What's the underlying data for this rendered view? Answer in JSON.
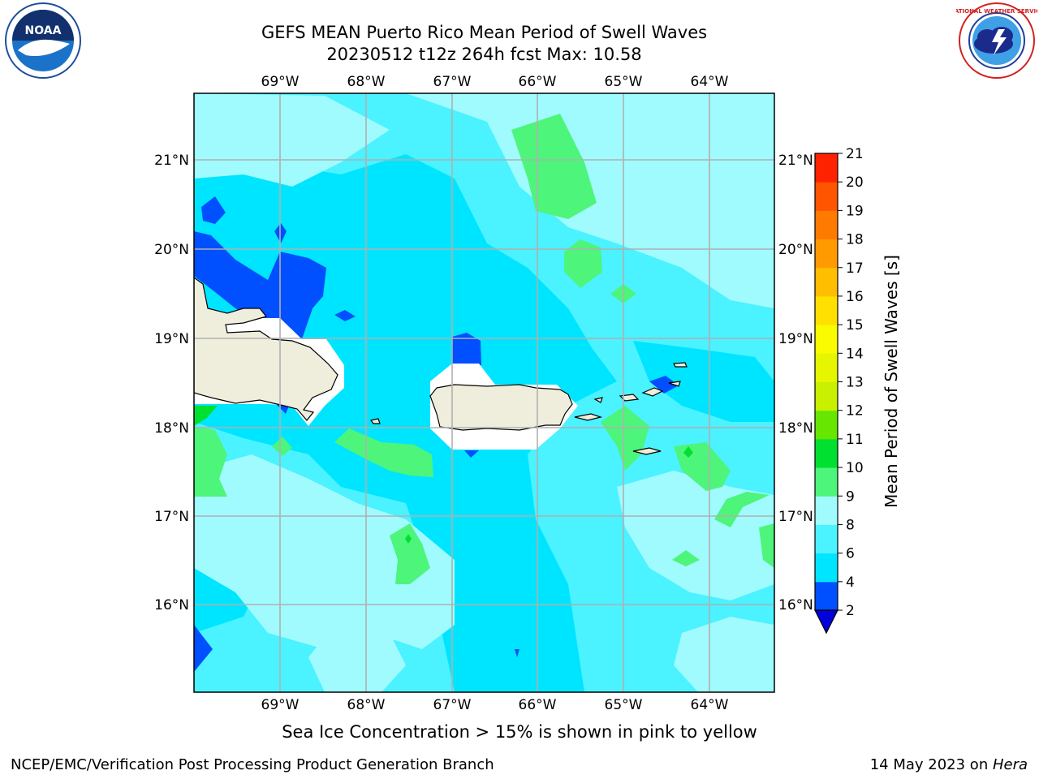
{
  "header": {
    "title_line1": "GEFS MEAN Puerto Rico Mean Period of Swell Waves",
    "title_line2": "20230512 t12z 264h fcst   Max: 10.58"
  },
  "logos": {
    "left": "noaa-logo",
    "right": "national-weather-service-logo",
    "left_text": "NOAA",
    "right_text": "NATIONAL WEATHER SERVICE"
  },
  "map": {
    "lon_labels": [
      "69°W",
      "68°W",
      "67°W",
      "66°W",
      "65°W",
      "64°W"
    ],
    "lat_labels": [
      "21°N",
      "20°N",
      "19°N",
      "18°N",
      "17°N",
      "16°N"
    ],
    "gridlines": true,
    "land_color": "#efeedc",
    "mask_color": "#ffffff"
  },
  "colorbar": {
    "label": "Mean Period of Swell Waves [s]",
    "ticks": [
      "2",
      "4",
      "6",
      "8",
      "9",
      "10",
      "11",
      "12",
      "13",
      "14",
      "15",
      "16",
      "17",
      "18",
      "19",
      "20",
      "21"
    ],
    "colors": [
      "#0050ff",
      "#00e5ff",
      "#4bf2ff",
      "#a0fbff",
      "#4df57a",
      "#00e030",
      "#66e600",
      "#c8f000",
      "#e6f500",
      "#fafa00",
      "#ffe000",
      "#ffbe00",
      "#ff9b00",
      "#ff7a00",
      "#ff5500",
      "#ff2200"
    ],
    "under_color": "#0000dd",
    "over_color": "#ff0000"
  },
  "caption": "Sea Ice Concentration > 15% is shown in pink to yellow",
  "footer": {
    "left": "NCEP/EMC/Verification Post Processing Product Generation Branch",
    "right_date": "14 May 2023 on ",
    "right_machine": "Hera"
  }
}
